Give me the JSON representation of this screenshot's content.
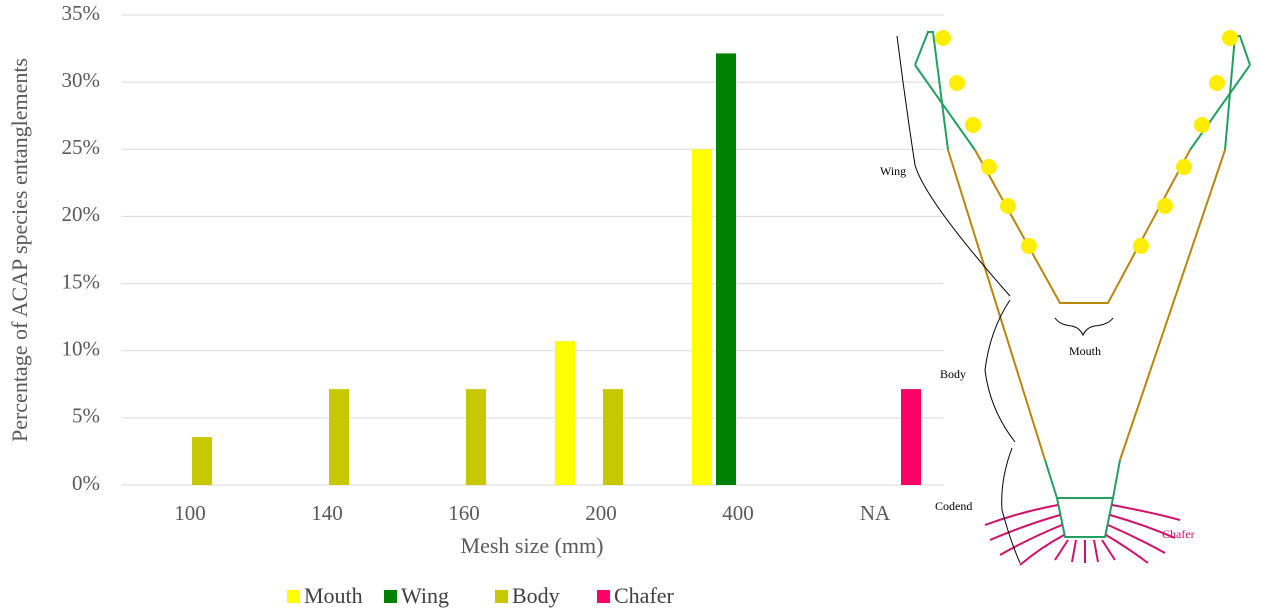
{
  "chart_data": {
    "type": "bar",
    "x_label": "Mesh size (mm)",
    "y_label": "Percentage of ACAP species entanglements",
    "categories": [
      "100",
      "140",
      "160",
      "200",
      "400",
      "NA"
    ],
    "series": [
      {
        "name": "Mouth",
        "color": "#ffff00",
        "values": [
          null,
          null,
          null,
          10.71,
          25,
          null
        ]
      },
      {
        "name": "Wing",
        "color": "#008000",
        "values": [
          null,
          null,
          null,
          null,
          32.14,
          null
        ]
      },
      {
        "name": "Body",
        "color": "#c8c800",
        "values": [
          3.57,
          7.14,
          7.14,
          7.14,
          null,
          null
        ]
      },
      {
        "name": "Chafer",
        "color": "#ff0066",
        "values": [
          null,
          null,
          null,
          null,
          null,
          7.14
        ]
      }
    ],
    "ylim": [
      0,
      35
    ],
    "yticks": [
      {
        "value": 0,
        "label": "0%"
      },
      {
        "value": 5,
        "label": "5%"
      },
      {
        "value": 10,
        "label": "10%"
      },
      {
        "value": 15,
        "label": "15%"
      },
      {
        "value": 20,
        "label": "20%"
      },
      {
        "value": 25,
        "label": "25%"
      },
      {
        "value": 30,
        "label": "30%"
      },
      {
        "value": 35,
        "label": "35%"
      }
    ],
    "grid": true,
    "legend": "bottom"
  },
  "diagram": {
    "labels": {
      "wing": "Wing",
      "body": "Body",
      "mouth": "Mouth",
      "codend": "Codend",
      "chafer": "Chafer"
    }
  }
}
